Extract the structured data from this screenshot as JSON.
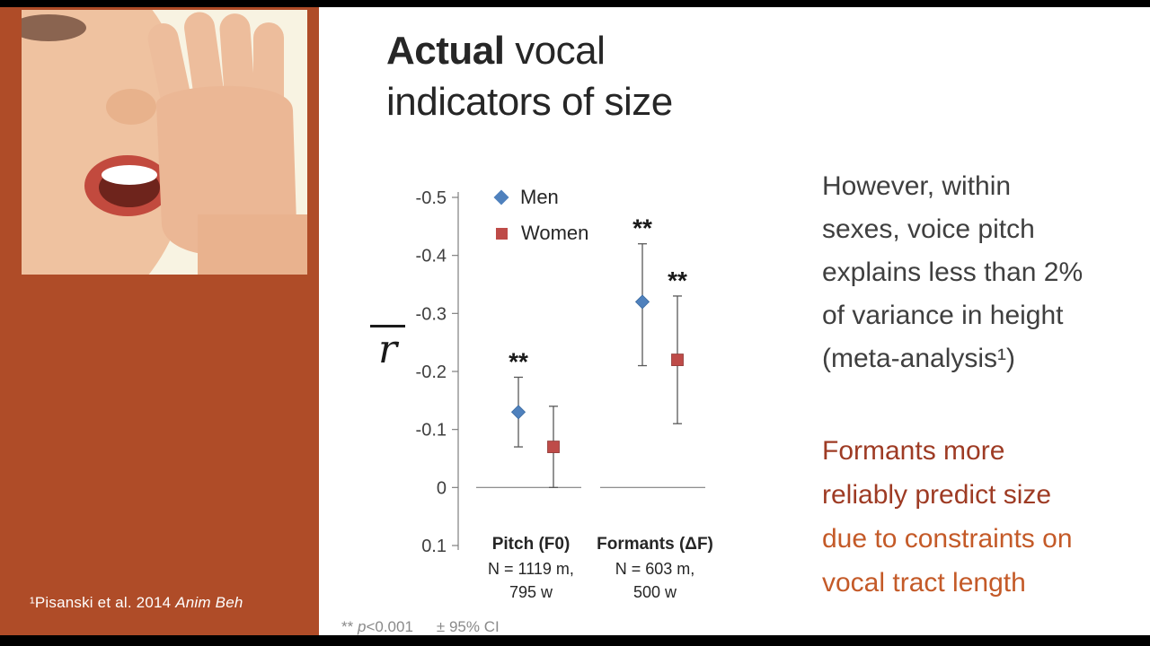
{
  "slide": {
    "title": {
      "bold": "Actual",
      "rest": " vocal indicators of size"
    },
    "citation": {
      "prefix": "¹Pisanski et al. 2014 ",
      "italic": "Anim Beh"
    },
    "left_panel": {
      "photo_alt": "close-up of a face speaking into a cupped hand"
    },
    "right_column": {
      "para1_lines": [
        "However, within",
        "sexes, voice pitch",
        "explains less than 2%",
        "of variance in height",
        "(meta-analysis¹)"
      ],
      "para2_lines": [
        {
          "text": "Formants more",
          "tone": "dark"
        },
        {
          "text": "reliably predict size",
          "tone": "dark"
        },
        {
          "text": "due to constraints on",
          "tone": "light"
        },
        {
          "text": "vocal tract length",
          "tone": "light"
        }
      ]
    },
    "footnote": {
      "stars": "**",
      "p": "p",
      "p_value": "<0.001",
      "ci": "± 95% CI"
    }
  },
  "chart_data": {
    "type": "scatter",
    "title": "",
    "ylabel": "r̄",
    "ylabel_display": "r",
    "y_axis": {
      "min": -0.5,
      "max": 0.1,
      "ticks": [
        -0.5,
        -0.4,
        -0.3,
        -0.2,
        -0.1,
        0,
        0.1
      ],
      "direction": "negative-up"
    },
    "grid": false,
    "legend_position": "top-inside",
    "error_bars": "± 95% CI",
    "significance_note": "** p<0.001",
    "categories": [
      {
        "label": "Pitch (F0)",
        "n_lines": [
          "N = 1119 m,",
          "795 w"
        ]
      },
      {
        "label": "Formants (ΔF)",
        "n_lines": [
          "N =  603 m,",
          "500 w"
        ]
      }
    ],
    "series": [
      {
        "name": "Men",
        "marker": "diamond",
        "color": "#4F81BD",
        "points": [
          {
            "category": "Pitch (F0)",
            "r": -0.13,
            "ci": [
              -0.19,
              -0.07
            ],
            "sig": "**"
          },
          {
            "category": "Formants (ΔF)",
            "r": -0.32,
            "ci": [
              -0.42,
              -0.21
            ],
            "sig": "**"
          }
        ]
      },
      {
        "name": "Women",
        "marker": "square",
        "color": "#BE4B48",
        "points": [
          {
            "category": "Pitch (F0)",
            "r": -0.07,
            "ci": [
              -0.14,
              0.0
            ],
            "sig": ""
          },
          {
            "category": "Formants (ΔF)",
            "r": -0.22,
            "ci": [
              -0.33,
              -0.11
            ],
            "sig": "**"
          }
        ]
      }
    ]
  },
  "colors": {
    "rust_panel": "#AF4C28",
    "men": "#4F81BD",
    "women": "#BE4B48",
    "dark_rust_text": "#9E3B24",
    "light_rust_text": "#C45A28",
    "body_text": "#3F3F3F",
    "footnote_gray": "#8A8A8A"
  }
}
